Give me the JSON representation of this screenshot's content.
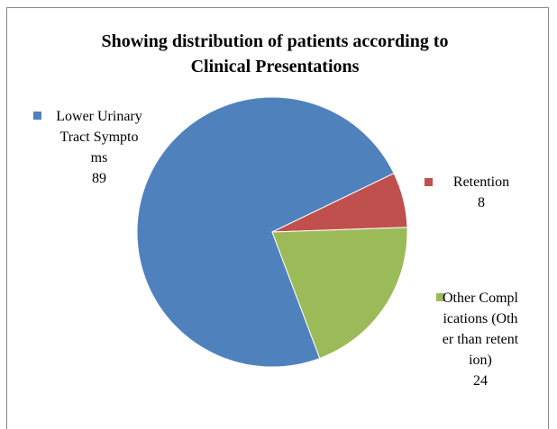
{
  "chart_data": {
    "type": "pie",
    "title": "Showing distribution of patients according to Clinical Presentations",
    "categories": [
      "Lower Urinary Tract Symptoms",
      "Retention",
      "Other Complications (Other than retention)"
    ],
    "values": [
      89,
      8,
      24
    ],
    "colors": [
      "#4f81bd",
      "#c0504d",
      "#9bbb59"
    ]
  }
}
